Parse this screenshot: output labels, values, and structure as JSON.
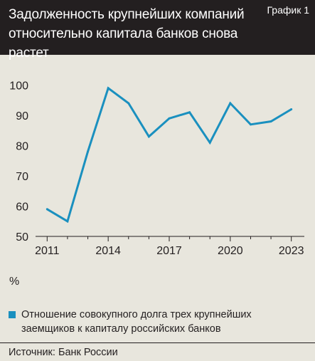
{
  "header": {
    "title": "Задолженность крупнейших компаний относительно капитала банков снова растет",
    "chart_label": "График 1"
  },
  "legend": {
    "color": "#1a90bf",
    "text": "Отношение совокупного долга трех крупнейших заемщиков к капиталу российских банков"
  },
  "source": "Источник: Банк России",
  "chart_data": {
    "type": "line",
    "title": "",
    "xlabel": "",
    "ylabel": "%",
    "x_ticks": [
      "2011",
      "2014",
      "2017",
      "2020",
      "2023"
    ],
    "y_ticks": [
      "50",
      "60",
      "70",
      "80",
      "90",
      "100"
    ],
    "xlim": [
      2010.5,
      2023.5
    ],
    "ylim": [
      50,
      102
    ],
    "grid": false,
    "series": [
      {
        "color": "#1a90bf",
        "x": [
          2011,
          2012,
          2013,
          2014,
          2015,
          2016,
          2017,
          2018,
          2019,
          2020,
          2021,
          2022,
          2023
        ],
        "values": [
          59,
          55,
          78,
          99,
          94,
          83,
          89,
          91,
          81,
          94,
          87,
          88,
          92
        ]
      }
    ]
  }
}
